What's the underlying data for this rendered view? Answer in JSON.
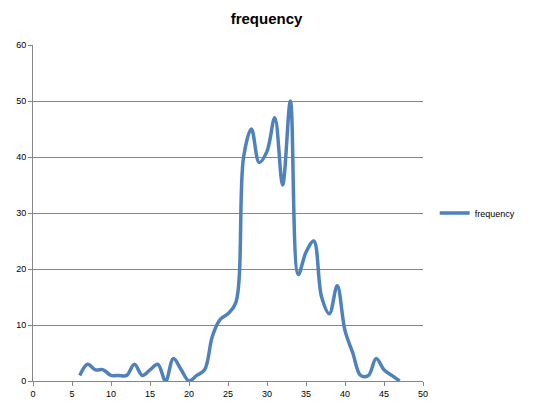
{
  "chart_data": {
    "type": "line",
    "title": "frequency",
    "x": [
      6,
      7,
      8,
      9,
      10,
      11,
      12,
      13,
      14,
      15,
      16,
      17,
      18,
      19,
      20,
      21,
      22,
      23,
      24,
      25,
      26,
      27,
      28,
      29,
      30,
      31,
      32,
      33,
      34,
      35,
      36,
      37,
      38,
      39,
      40,
      41,
      42,
      43,
      44,
      45,
      46,
      47
    ],
    "series": [
      {
        "name": "frequency",
        "color": "#4f81bd",
        "values": [
          1,
          3,
          2,
          2,
          1,
          1,
          1,
          3,
          1,
          2,
          3,
          0,
          4,
          2,
          0,
          1,
          2,
          8,
          11,
          12,
          14,
          40,
          45,
          39,
          41,
          47,
          35,
          50,
          19,
          23,
          25,
          15,
          12,
          17,
          9,
          5,
          1,
          1,
          4,
          2,
          1,
          0
        ]
      }
    ],
    "xlim": [
      0,
      50
    ],
    "xticks": [
      0,
      5,
      10,
      15,
      20,
      25,
      30,
      35,
      40,
      45,
      50
    ],
    "ylim": [
      0,
      60
    ],
    "yticks": [
      0,
      10,
      20,
      30,
      40,
      50,
      60
    ],
    "grid": true,
    "legend": "right",
    "line_style": "smooth"
  }
}
